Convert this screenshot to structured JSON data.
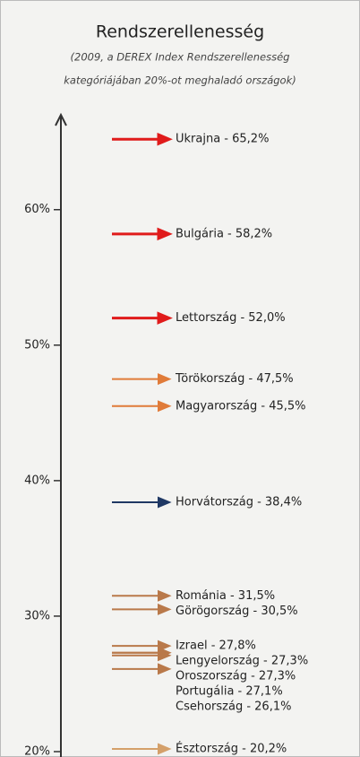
{
  "chart_data": {
    "type": "arrow-scale",
    "title": "Rendszerellenesség",
    "subtitle": [
      "(2009, a DEREX Index Rendszerellenesség",
      "kategóriájában 20%-ot meghaladó országok)"
    ],
    "values": [
      65.2,
      58.2,
      52.0,
      47.5,
      45.5,
      38.4,
      31.5,
      30.5,
      27.8,
      27.3,
      27.3,
      27.1,
      26.1,
      20.2
    ],
    "value_labels": [
      "Ukrajna - 65,2%",
      "Bulgária - 58,2%",
      "Lettország - 52,0%",
      "Törökország - 47,5%",
      "Magyarország - 45,5%",
      "Horvátország - 38,4%",
      "Románia - 31,5%",
      "Görögország - 30,5%",
      "Izrael - 27,8%",
      "Lengyelország - 27,3%",
      "Oroszország - 27,3%",
      "Portugália - 27,1%",
      "Csehország - 26,1%",
      "Észtország - 20,2%"
    ],
    "colors": [
      "#e01b1b",
      "#e01b1b",
      "#e01b1b",
      "#e07b39",
      "#e07b39",
      "#1f3864",
      "#b9794a",
      "#b9794a",
      "#b9794a",
      "#b9794a",
      "#b9794a",
      "#b9794a",
      "#b9794a",
      "#d4a06a"
    ],
    "ylim": [
      20,
      67
    ],
    "yticks": [
      {
        "value": 20,
        "label": "20%"
      },
      {
        "value": 30,
        "label": "30%"
      },
      {
        "value": 40,
        "label": "40%"
      },
      {
        "value": 50,
        "label": "50%"
      },
      {
        "value": 60,
        "label": "60%"
      }
    ]
  }
}
